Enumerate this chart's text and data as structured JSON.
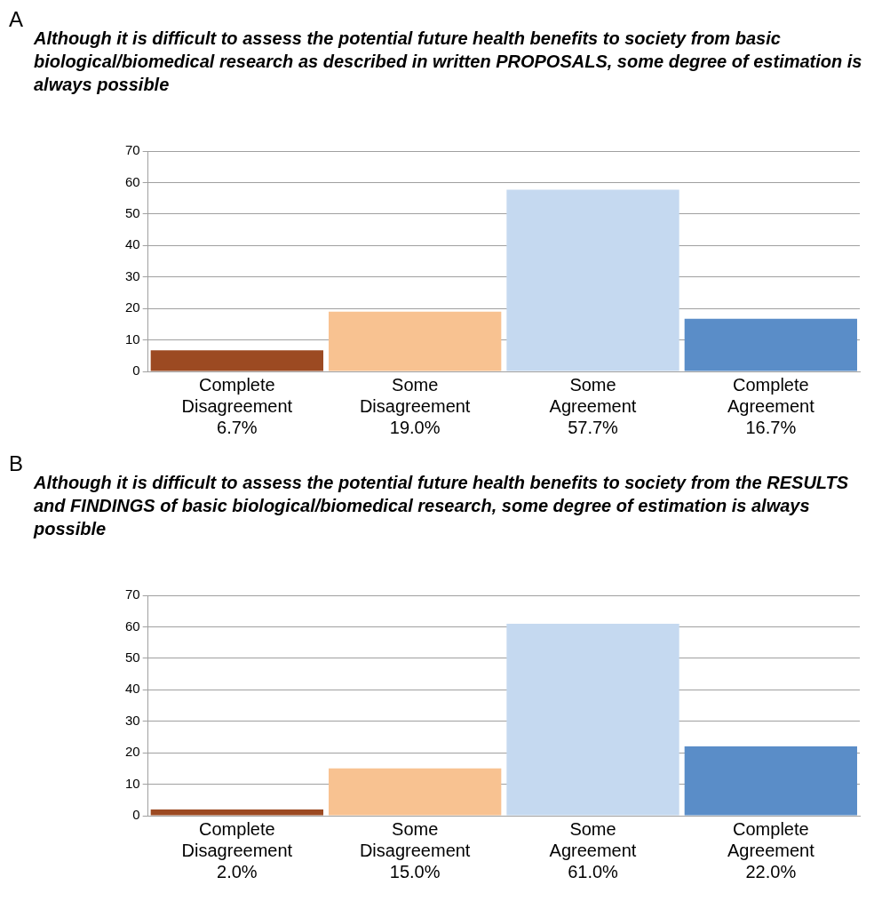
{
  "chart_data": [
    {
      "type": "bar",
      "annotations": [
        "A"
      ],
      "title": "Although it is difficult to assess the potential future health benefits to society from basic biological/biomedical research as described in written PROPOSALS, some degree of estimation is always possible",
      "categories": [
        "Complete Disagreement",
        "Some Disagreement",
        "Some Agreement",
        "Complete Agreement"
      ],
      "values": [
        6.7,
        19.0,
        57.7,
        16.7
      ],
      "value_labels": [
        "6.7%",
        "19.0%",
        "57.7%",
        "16.7%"
      ],
      "colors": [
        "#9c4a22",
        "#f8c291",
        "#c5d9f0",
        "#5a8dc8"
      ],
      "ylim": [
        0,
        70
      ],
      "yticks": [
        0,
        10,
        20,
        30,
        40,
        50,
        60,
        70
      ],
      "grid": "y"
    },
    {
      "type": "bar",
      "annotations": [
        "B"
      ],
      "title": "Although it is difficult to assess the potential future health benefits to society from the RESULTS and FINDINGS of basic biological/biomedical research, some degree of estimation is always possible",
      "categories": [
        "Complete Disagreement",
        "Some Disagreement",
        "Some Agreement",
        "Complete Agreement"
      ],
      "values": [
        2.0,
        15.0,
        61.0,
        22.0
      ],
      "value_labels": [
        "2.0%",
        "15.0%",
        "61.0%",
        "22.0%"
      ],
      "colors": [
        "#9c4a22",
        "#f8c291",
        "#c5d9f0",
        "#5a8dc8"
      ],
      "ylim": [
        0,
        70
      ],
      "yticks": [
        0,
        10,
        20,
        30,
        40,
        50,
        60,
        70
      ],
      "grid": "y"
    }
  ]
}
